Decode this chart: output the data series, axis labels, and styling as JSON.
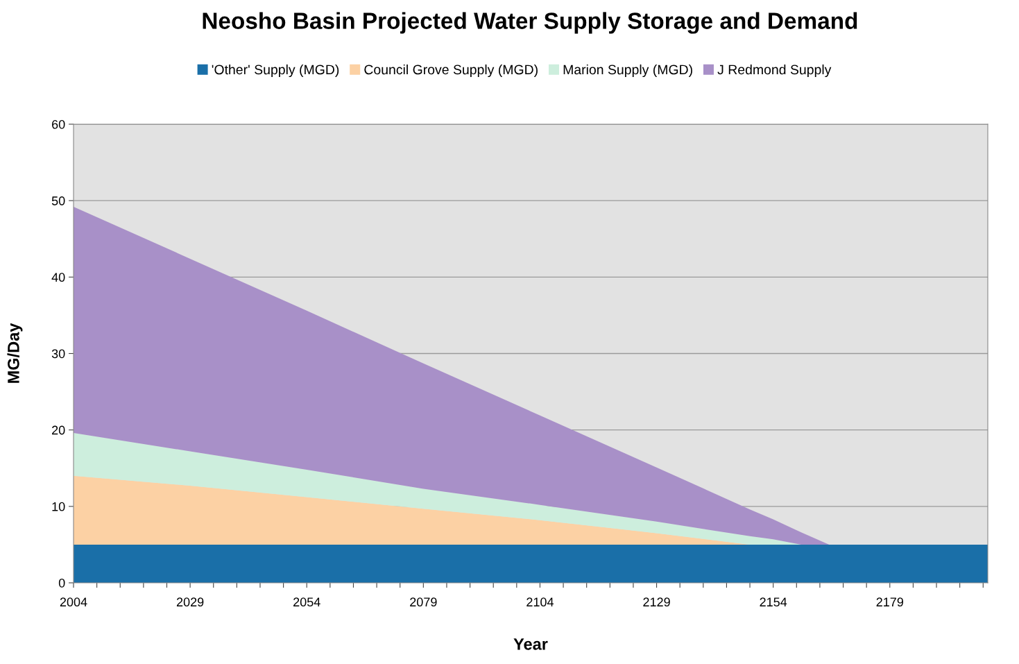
{
  "chart_data": {
    "type": "area",
    "stacked": true,
    "title": "Neosho Basin Projected Water Supply Storage and Demand",
    "xlabel": "Year",
    "ylabel": "MG/Day",
    "x": [
      2004,
      2029,
      2054,
      2079,
      2104,
      2129,
      2149,
      2154,
      2160,
      2166,
      2179,
      2200
    ],
    "series": [
      {
        "name": "'Other' Supply (MGD)",
        "color": "#1a6fa8",
        "values": [
          5,
          5,
          5,
          5,
          5,
          5,
          5,
          5,
          5,
          5,
          5,
          5
        ]
      },
      {
        "name": "Council Grove Supply (MGD)",
        "color": "#fcd1a4",
        "values": [
          9,
          7.7,
          6.2,
          4.7,
          3.2,
          1.5,
          0,
          0,
          0,
          0,
          0,
          0
        ]
      },
      {
        "name": "Marion Supply (MGD)",
        "color": "#cdeedd",
        "values": [
          5.6,
          4.5,
          3.6,
          2.6,
          2.0,
          1.5,
          1.1,
          0.7,
          0,
          0,
          0,
          0
        ]
      },
      {
        "name": "J Redmond Supply",
        "color": "#a890c8",
        "values": [
          29.6,
          25.2,
          20.8,
          16.4,
          11.7,
          7.1,
          3.5,
          2.6,
          1.6,
          0,
          0,
          0
        ]
      }
    ],
    "xlim": [
      2004,
      2200
    ],
    "xticks": [
      2004,
      {
        "value": 2009,
        "label": null
      },
      {
        "value": 2014,
        "label": null
      },
      {
        "value": 2019,
        "label": null
      },
      {
        "value": 2024,
        "label": null
      },
      2029,
      {
        "value": 2034,
        "label": null
      },
      {
        "value": 2039,
        "label": null
      },
      {
        "value": 2044,
        "label": null
      },
      {
        "value": 2049,
        "label": null
      },
      2054,
      {
        "value": 2059,
        "label": null
      },
      {
        "value": 2064,
        "label": null
      },
      {
        "value": 2069,
        "label": null
      },
      {
        "value": 2074,
        "label": null
      },
      2079,
      {
        "value": 2084,
        "label": null
      },
      {
        "value": 2089,
        "label": null
      },
      {
        "value": 2094,
        "label": null
      },
      {
        "value": 2099,
        "label": null
      },
      2104,
      {
        "value": 2109,
        "label": null
      },
      {
        "value": 2114,
        "label": null
      },
      {
        "value": 2119,
        "label": null
      },
      {
        "value": 2124,
        "label": null
      },
      2129,
      {
        "value": 2134,
        "label": null
      },
      {
        "value": 2139,
        "label": null
      },
      {
        "value": 2144,
        "label": null
      },
      {
        "value": 2149,
        "label": null
      },
      2154,
      {
        "value": 2159,
        "label": null
      },
      {
        "value": 2164,
        "label": null
      },
      {
        "value": 2169,
        "label": null
      },
      {
        "value": 2174,
        "label": null
      },
      2179,
      {
        "value": 2184,
        "label": null
      },
      {
        "value": 2189,
        "label": null
      },
      {
        "value": 2194,
        "label": null
      },
      {
        "value": 2199,
        "label": null
      }
    ],
    "ylim": [
      0,
      60
    ],
    "yticks": [
      0,
      10,
      20,
      30,
      40,
      50,
      60
    ],
    "grid": "y",
    "legend": "top"
  }
}
